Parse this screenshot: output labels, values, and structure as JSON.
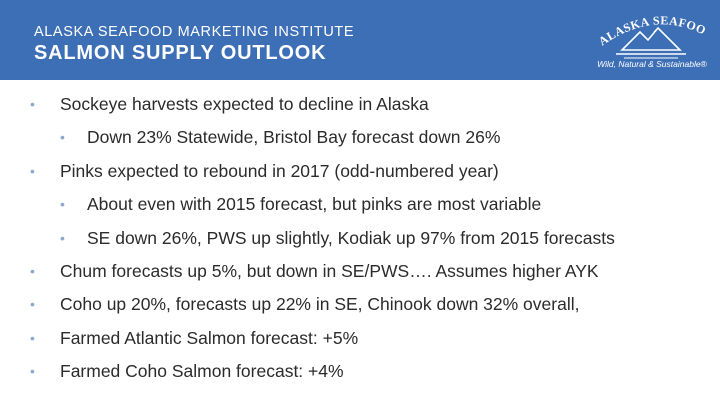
{
  "header": {
    "org": "ALASKA SEAFOOD MARKETING INSTITUTE",
    "title": "SALMON SUPPLY OUTLOOK"
  },
  "logo": {
    "wordmark": "ALASKA SEAFOOD",
    "tagline": "Wild, Natural & Sustainable®"
  },
  "bullets": [
    {
      "level": 1,
      "text": "Sockeye harvests expected to decline in Alaska"
    },
    {
      "level": 2,
      "text": "Down 23% Statewide, Bristol Bay forecast down 26%"
    },
    {
      "level": 1,
      "text": "Pinks expected to rebound in 2017 (odd-numbered year)"
    },
    {
      "level": 2,
      "text": "About even with 2015 forecast, but pinks are most variable"
    },
    {
      "level": 2,
      "text": "SE down 26%, PWS up slightly, Kodiak up 97% from 2015 forecasts"
    },
    {
      "level": 1,
      "text": "Chum forecasts up 5%, but down in SE/PWS…. Assumes higher AYK"
    },
    {
      "level": 1,
      "text": "Coho up 20%, forecasts up 22% in SE, Chinook down 32% overall,"
    },
    {
      "level": 1,
      "text": "Farmed Atlantic Salmon forecast: +5%"
    },
    {
      "level": 1,
      "text": "Farmed Coho Salmon forecast: +4%"
    }
  ],
  "colors": {
    "header_bg": "#3d6fb6",
    "header_text": "#ffffff",
    "bullet_marker": "#8ea8cc",
    "body_text": "#2b2b2b"
  }
}
